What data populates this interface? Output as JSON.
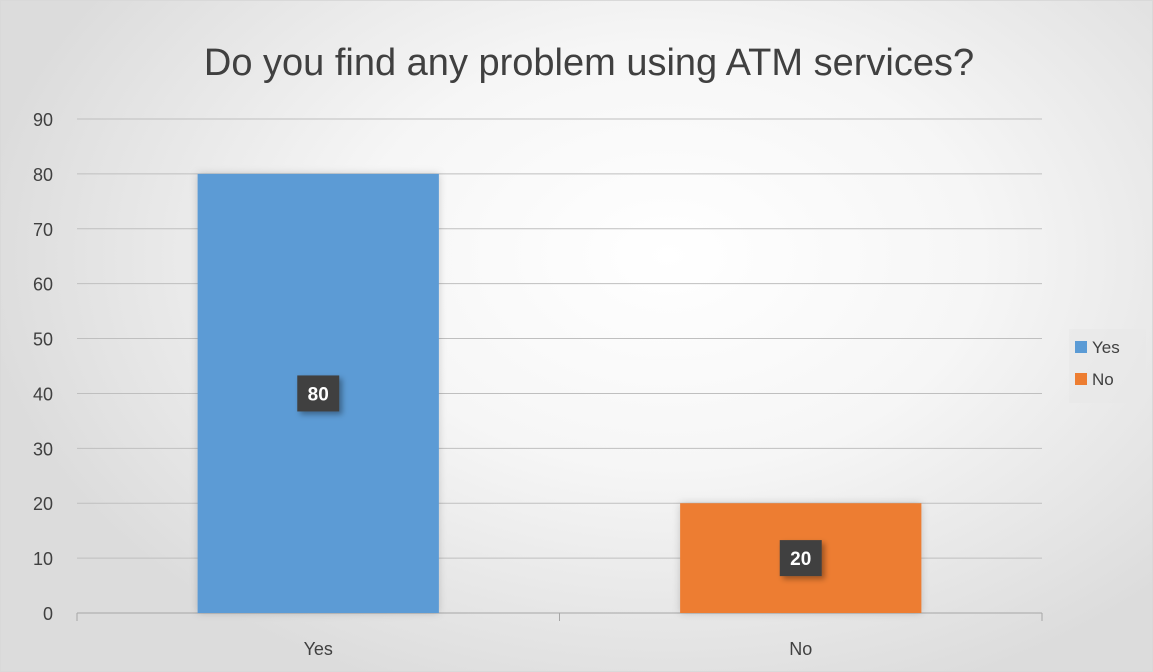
{
  "chart_data": {
    "type": "bar",
    "title": "Do you find any problem using ATM services?",
    "xlabel": "",
    "ylabel": "",
    "categories": [
      "Yes",
      "No"
    ],
    "values": [
      80,
      20
    ],
    "colors": [
      "#5b9bd5",
      "#ed7d31"
    ],
    "ylim": [
      0,
      90
    ],
    "yticks": [
      0,
      10,
      20,
      30,
      40,
      50,
      60,
      70,
      80,
      90
    ],
    "grid": true,
    "legend": {
      "placement": "right",
      "entries": [
        {
          "label": "Yes",
          "color": "#5b9bd5"
        },
        {
          "label": "No",
          "color": "#ed7d31"
        }
      ]
    },
    "data_labels": [
      "80",
      "20"
    ]
  }
}
